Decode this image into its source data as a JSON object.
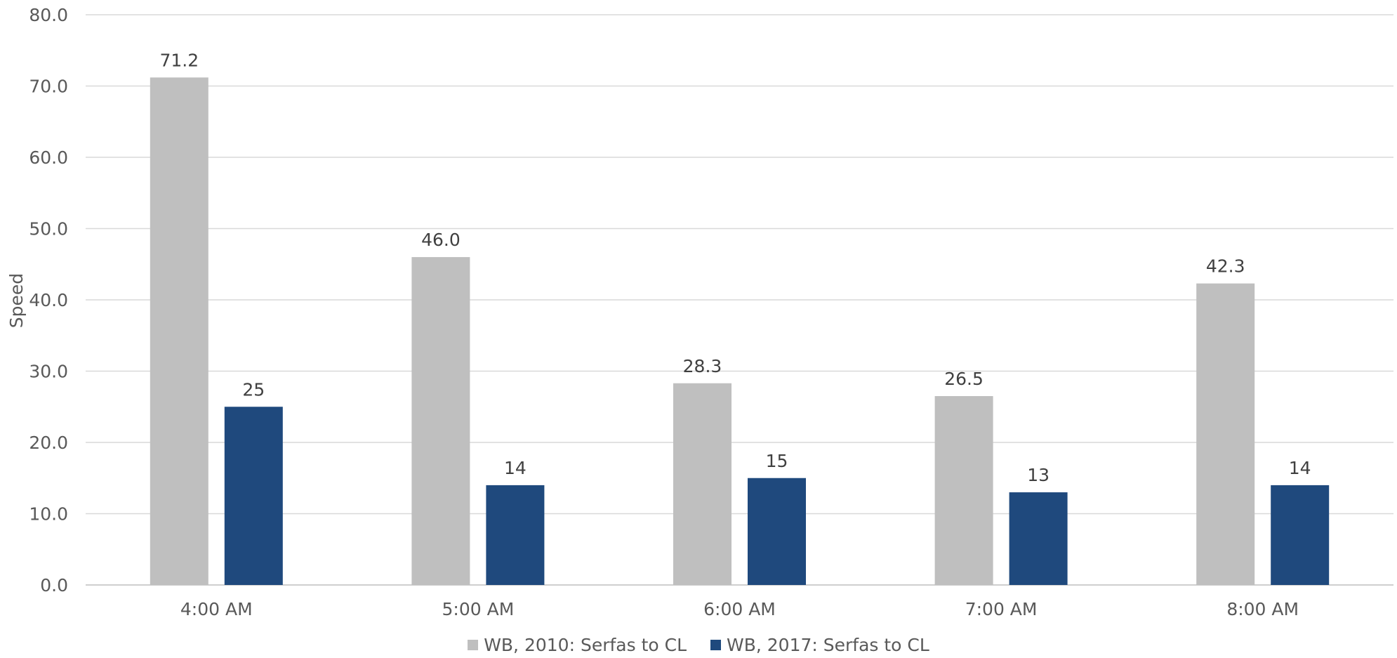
{
  "chart_data": {
    "type": "bar",
    "title": "",
    "xlabel": "",
    "ylabel": "Speed",
    "ylim": [
      0,
      80
    ],
    "ytick_step": 10,
    "ytick_labels": [
      "0.0",
      "10.0",
      "20.0",
      "30.0",
      "40.0",
      "50.0",
      "60.0",
      "70.0",
      "80.0"
    ],
    "categories": [
      "4:00 AM",
      "5:00 AM",
      "6:00 AM",
      "7:00 AM",
      "8:00 AM"
    ],
    "series": [
      {
        "name": "WB, 2010: Serfas to CL",
        "color": "#bfbfbf",
        "values": [
          71.2,
          46.0,
          28.3,
          26.5,
          42.3
        ],
        "labels": [
          "71.2",
          "46.0",
          "28.3",
          "26.5",
          "42.3"
        ]
      },
      {
        "name": "WB, 2017: Serfas to CL",
        "color": "#1f497d",
        "values": [
          25,
          14,
          15,
          13,
          14
        ],
        "labels": [
          "25",
          "14",
          "15",
          "13",
          "14"
        ]
      }
    ],
    "grid": true,
    "legend_position": "bottom"
  }
}
